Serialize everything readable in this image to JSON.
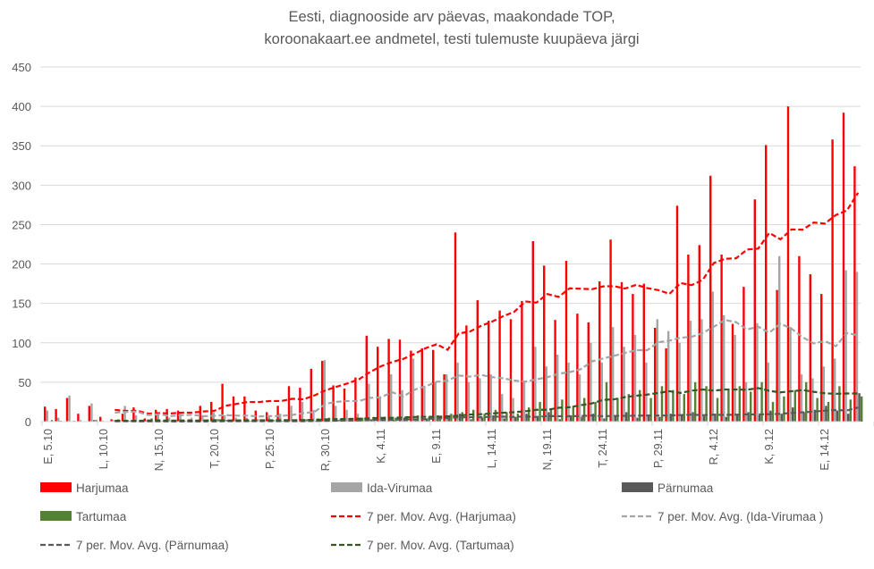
{
  "chart_data": {
    "type": "bar",
    "title": [
      "Eesti, diagnooside arv päevas, maakondade TOP,",
      "koroonakaart.ee andmetel, testi tulemuste kuupäeva järgi"
    ],
    "xlabel": "",
    "ylabel": "",
    "ylim": [
      0,
      450
    ],
    "yticks": [
      0,
      50,
      100,
      150,
      200,
      250,
      300,
      350,
      400,
      450
    ],
    "grid": true,
    "legend_position": "bottom",
    "x_start": "5.10",
    "x_end": "17.12",
    "xtick_labels": [
      "E, 5.10",
      "L, 10.10",
      "N, 15.10",
      "T, 20.10",
      "P, 25.10",
      "R, 30.10",
      "K, 4.11",
      "E, 9.11",
      "L, 14.11",
      "N, 19.11",
      "T, 24.11",
      "P, 29.11",
      "R, 4.12",
      "K, 9.12",
      "E, 14.12"
    ],
    "series": [
      {
        "name": "Harjumaa",
        "color": "#ff0000",
        "values": [
          19,
          16,
          30,
          10,
          20,
          6,
          3,
          10,
          18,
          4,
          15,
          16,
          14,
          3,
          20,
          25,
          48,
          32,
          32,
          14,
          12,
          20,
          45,
          43,
          67,
          77,
          46,
          42,
          56,
          109,
          95,
          105,
          104,
          90,
          93,
          91,
          60,
          240,
          122,
          154,
          128,
          141,
          130,
          153,
          229,
          198,
          129,
          204,
          137,
          126,
          178,
          231,
          177,
          162,
          175,
          119,
          93,
          274,
          212,
          224,
          312,
          212,
          124,
          171,
          282,
          351,
          167,
          400,
          210,
          187,
          162,
          358,
          392,
          324
        ]
      },
      {
        "name": "Ida-Virumaa",
        "color": "#a5a5a5",
        "values": [
          14,
          5,
          33,
          2,
          23,
          1,
          2,
          20,
          8,
          2,
          10,
          5,
          10,
          5,
          8,
          12,
          8,
          5,
          5,
          3,
          8,
          10,
          20,
          25,
          15,
          78,
          20,
          15,
          10,
          48,
          30,
          60,
          40,
          80,
          45,
          50,
          60,
          75,
          50,
          55,
          60,
          35,
          30,
          50,
          95,
          70,
          85,
          75,
          60,
          100,
          75,
          120,
          95,
          110,
          75,
          130,
          115,
          100,
          128,
          130,
          165,
          135,
          110,
          50,
          125,
          75,
          210,
          120,
          60,
          55,
          70,
          80,
          192,
          190
        ]
      },
      {
        "name": "Pärnumaa",
        "color": "#595959",
        "values": [
          0,
          1,
          0,
          0,
          2,
          0,
          0,
          1,
          0,
          0,
          0,
          1,
          0,
          0,
          1,
          0,
          2,
          0,
          1,
          0,
          0,
          1,
          0,
          2,
          1,
          3,
          2,
          1,
          2,
          3,
          4,
          2,
          5,
          3,
          4,
          8,
          6,
          10,
          3,
          5,
          8,
          4,
          6,
          10,
          5,
          12,
          3,
          8,
          6,
          10,
          4,
          8,
          12,
          5,
          9,
          6,
          10,
          8,
          12,
          7,
          10,
          6,
          9,
          12,
          8,
          14,
          10,
          18,
          12,
          15,
          20,
          14,
          10,
          36
        ]
      },
      {
        "name": "Tartumaa",
        "color": "#548235",
        "values": [
          2,
          0,
          1,
          0,
          2,
          0,
          3,
          1,
          0,
          4,
          1,
          0,
          1,
          2,
          2,
          3,
          1,
          2,
          1,
          1,
          2,
          3,
          2,
          3,
          4,
          5,
          3,
          4,
          5,
          6,
          6,
          5,
          7,
          8,
          6,
          5,
          10,
          12,
          15,
          10,
          15,
          12,
          10,
          18,
          25,
          15,
          28,
          20,
          30,
          25,
          50,
          30,
          35,
          40,
          30,
          45,
          40,
          35,
          50,
          45,
          30,
          40,
          45,
          38,
          50,
          25,
          32,
          40,
          50,
          30,
          25,
          45,
          28,
          32
        ]
      }
    ],
    "moving_averages": [
      {
        "name": "7 per. Mov. Avg. (Harjumaa)",
        "of": 0,
        "period": 7,
        "color": "#ff0000"
      },
      {
        "name": "7 per. Mov. Avg. (Ida-Virumaa )",
        "of": 1,
        "period": 7,
        "color": "#a5a5a5"
      },
      {
        "name": "7 per. Mov. Avg. (Pärnumaa)",
        "of": 2,
        "period": 7,
        "color": "#595959"
      },
      {
        "name": "7 per. Mov. Avg. (Tartumaa)",
        "of": 3,
        "period": 7,
        "color": "#375623"
      }
    ]
  }
}
